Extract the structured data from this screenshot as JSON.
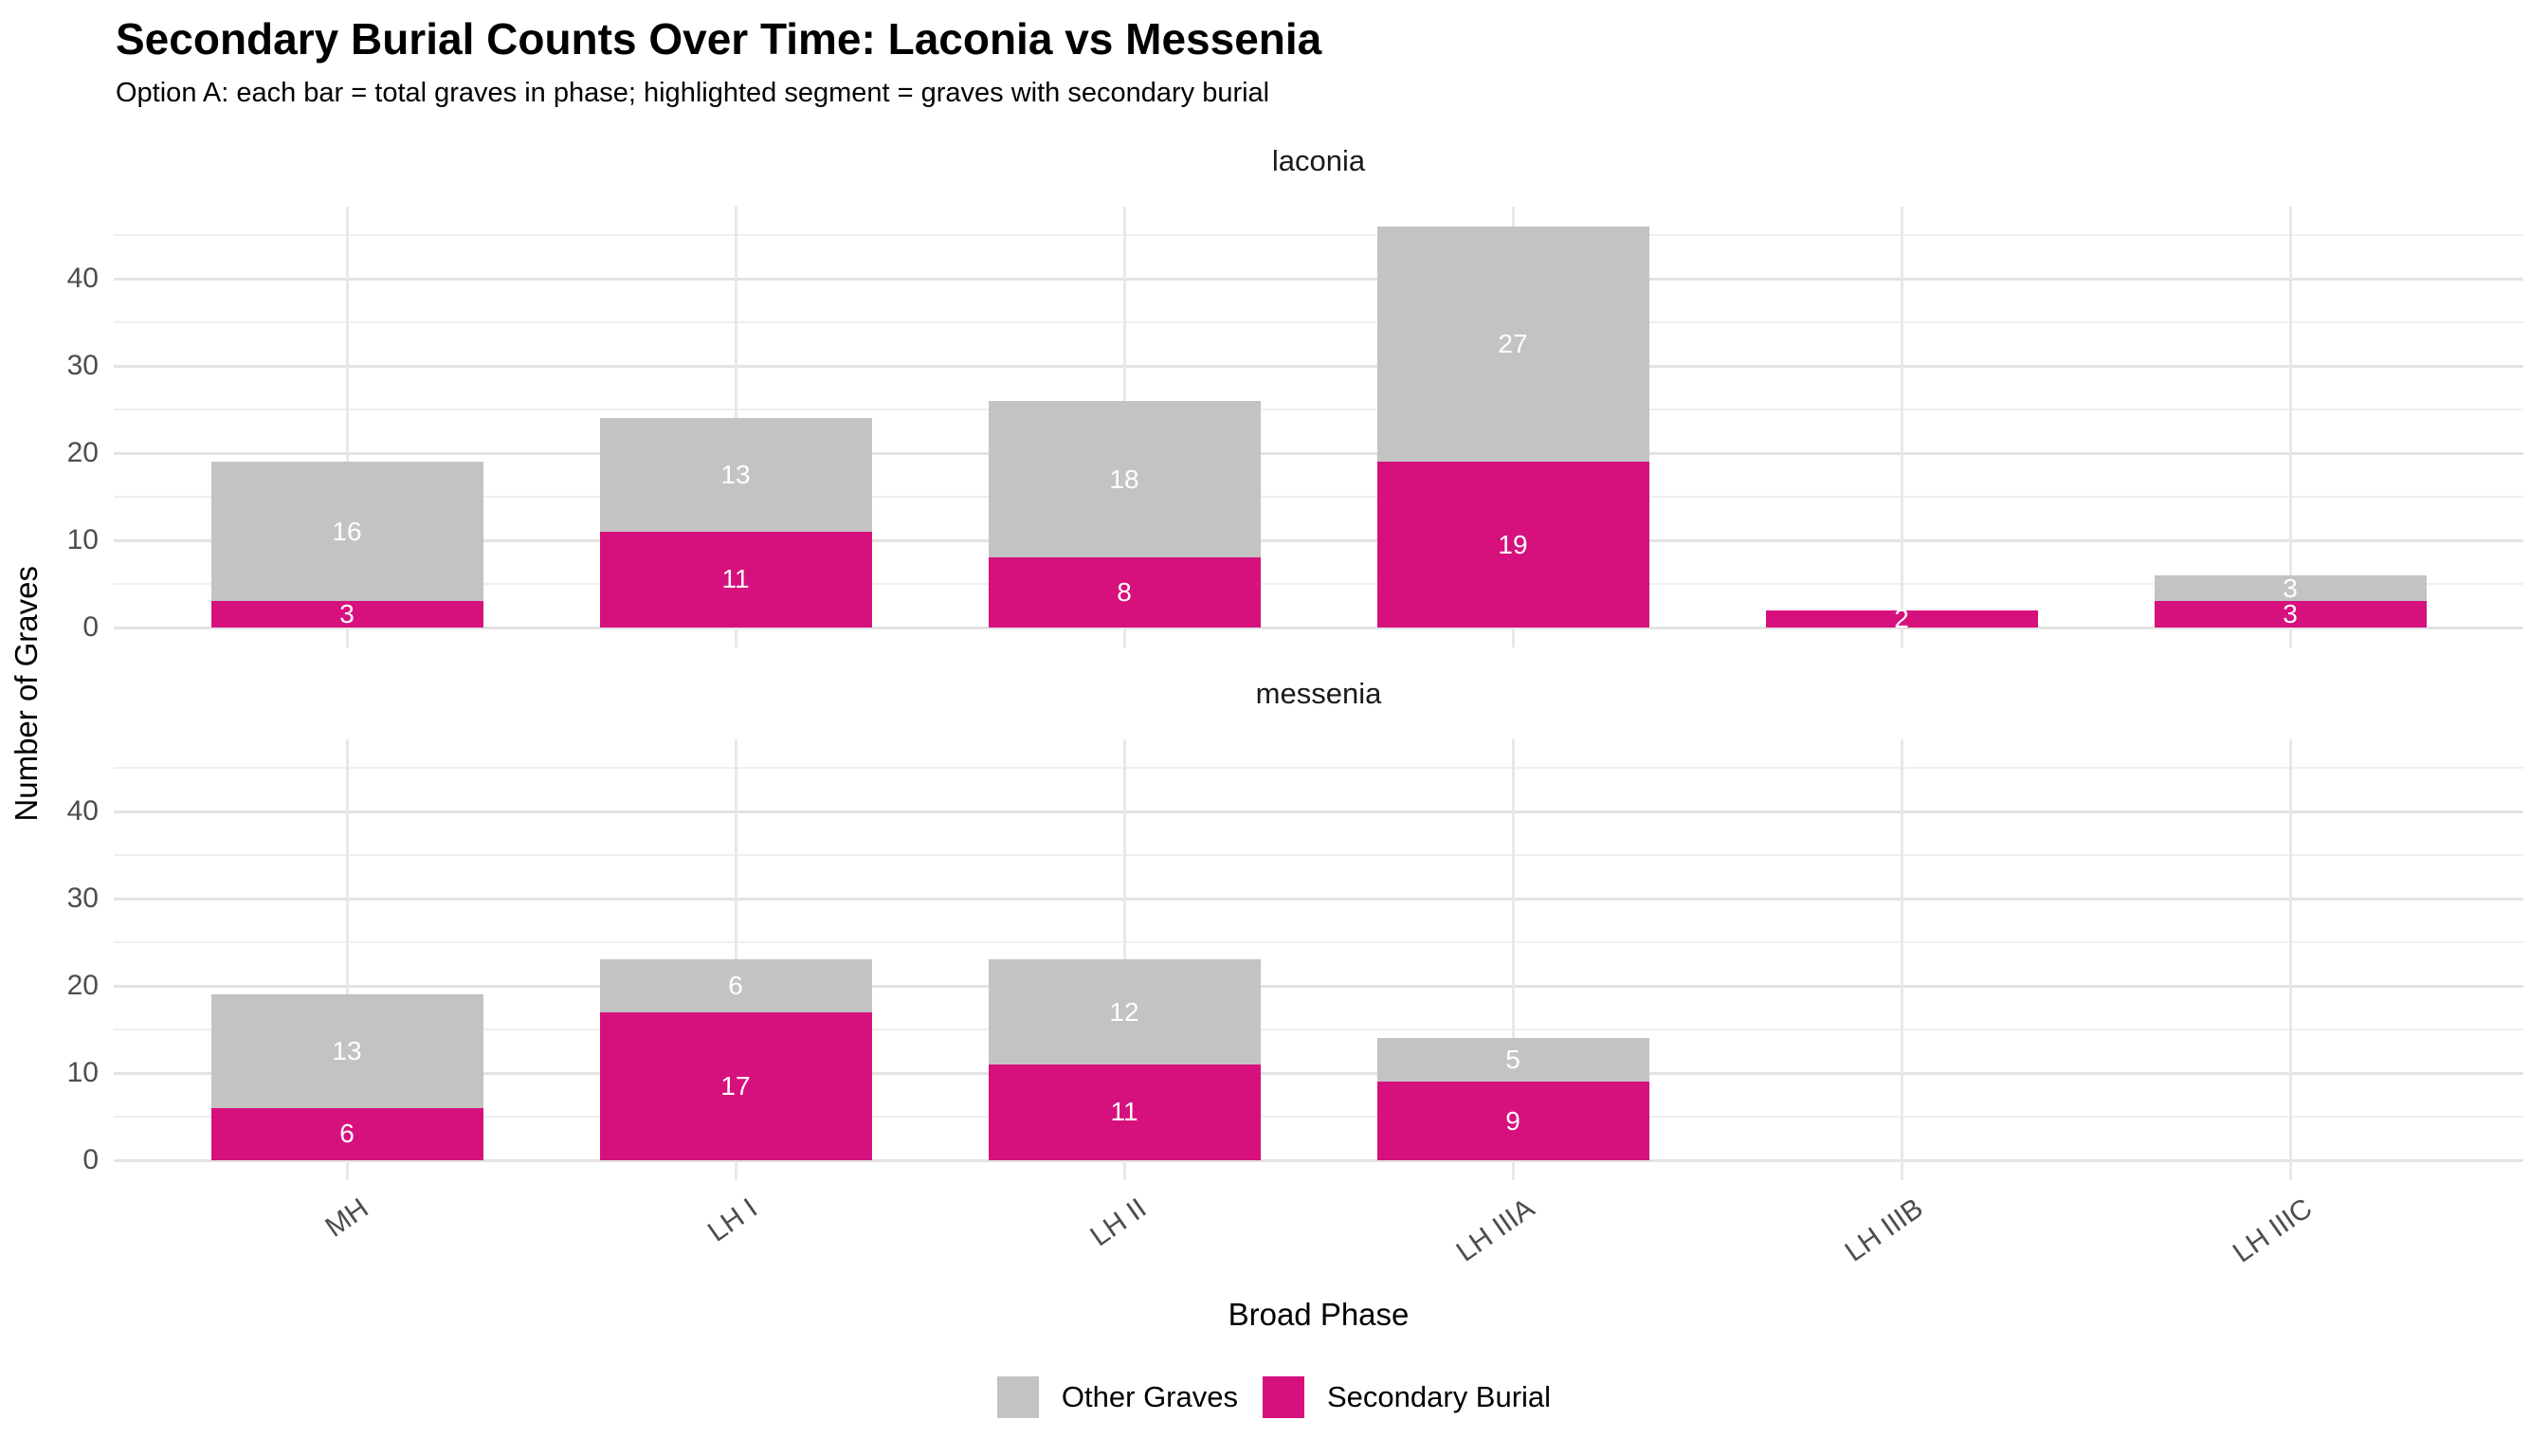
{
  "header": {
    "title": "Secondary Burial Counts Over Time: Laconia vs Messenia",
    "subtitle": "Option A: each bar = total graves in phase; highlighted segment = graves with secondary burial"
  },
  "chart_data": {
    "type": "bar",
    "stacked": true,
    "title": "Secondary Burial Counts Over Time: Laconia vs Messenia",
    "subtitle": "Option A: each bar = total graves in phase; highlighted segment = graves with secondary burial",
    "xlabel": "Broad Phase",
    "ylabel": "Number of Graves",
    "categories": [
      "MH",
      "LH I",
      "LH II",
      "LH IIIA",
      "LH IIIB",
      "LH IIIC"
    ],
    "facets": [
      {
        "label": "laconia",
        "series": [
          {
            "name": "Secondary Burial",
            "color_key": "secondary",
            "values": [
              3,
              11,
              8,
              19,
              2,
              3
            ]
          },
          {
            "name": "Other Graves",
            "color_key": "other",
            "values": [
              16,
              13,
              18,
              27,
              0,
              3
            ]
          }
        ]
      },
      {
        "label": "messenia",
        "series": [
          {
            "name": "Secondary Burial",
            "color_key": "secondary",
            "values": [
              6,
              17,
              11,
              9,
              0,
              0
            ]
          },
          {
            "name": "Other Graves",
            "color_key": "other",
            "values": [
              13,
              6,
              12,
              5,
              0,
              0
            ]
          }
        ]
      }
    ],
    "y_ticks": [
      0,
      10,
      20,
      30,
      40
    ],
    "y_minor_ticks": [
      5,
      15,
      25,
      35,
      45
    ],
    "ylim": [
      0,
      48.3
    ],
    "grid": {
      "major": true,
      "minor": true,
      "vertical_major": true
    },
    "legend": {
      "position": "bottom",
      "items": [
        {
          "label": "Other Graves",
          "color": "#C3C3C3"
        },
        {
          "label": "Secondary Burial",
          "color": "#D6117E"
        }
      ]
    },
    "colors": {
      "other": "#C3C3C3",
      "secondary": "#D6117E",
      "bar_label_text": "#FFFFFF"
    }
  }
}
